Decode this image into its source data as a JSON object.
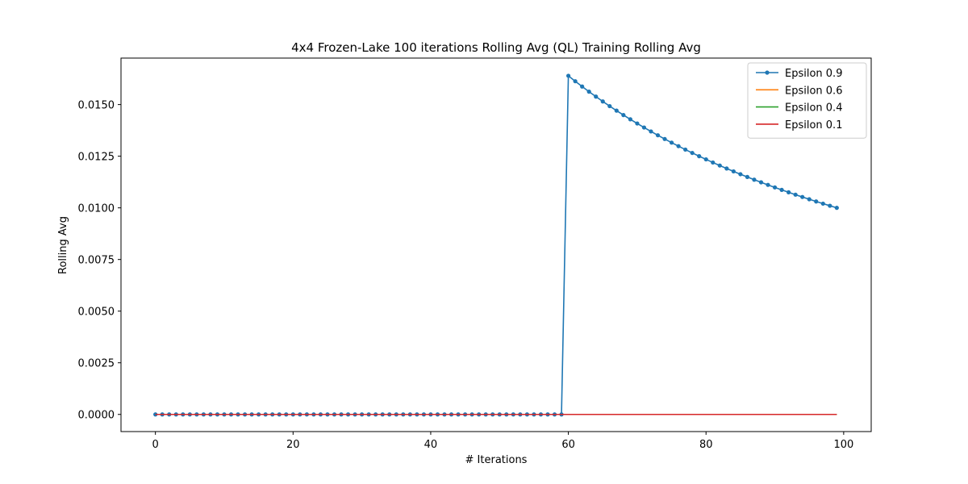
{
  "chart_data": {
    "type": "line",
    "title": "4x4 Frozen-Lake 100 iterations  Rolling Avg (QL) Training Rolling Avg",
    "xlabel": "# Iterations",
    "ylabel": "Rolling Avg",
    "xlim": [
      -5,
      104
    ],
    "ylim": [
      -0.00083,
      0.01725
    ],
    "xticks": [
      0,
      20,
      40,
      60,
      80,
      100
    ],
    "yticks": [
      0.0,
      0.0025,
      0.005,
      0.0075,
      0.01,
      0.0125,
      0.015
    ],
    "ytick_labels": [
      "0.0000",
      "0.0025",
      "0.0050",
      "0.0075",
      "0.0100",
      "0.0125",
      "0.0150"
    ],
    "grid": false,
    "legend_position": "top-right",
    "x": [
      0,
      1,
      2,
      3,
      4,
      5,
      6,
      7,
      8,
      9,
      10,
      11,
      12,
      13,
      14,
      15,
      16,
      17,
      18,
      19,
      20,
      21,
      22,
      23,
      24,
      25,
      26,
      27,
      28,
      29,
      30,
      31,
      32,
      33,
      34,
      35,
      36,
      37,
      38,
      39,
      40,
      41,
      42,
      43,
      44,
      45,
      46,
      47,
      48,
      49,
      50,
      51,
      52,
      53,
      54,
      55,
      56,
      57,
      58,
      59,
      60,
      61,
      62,
      63,
      64,
      65,
      66,
      67,
      68,
      69,
      70,
      71,
      72,
      73,
      74,
      75,
      76,
      77,
      78,
      79,
      80,
      81,
      82,
      83,
      84,
      85,
      86,
      87,
      88,
      89,
      90,
      91,
      92,
      93,
      94,
      95,
      96,
      97,
      98,
      99
    ],
    "series": [
      {
        "name": "Epsilon 0.9",
        "color": "#1f77b4",
        "marker": "circle",
        "values": [
          0,
          0,
          0,
          0,
          0,
          0,
          0,
          0,
          0,
          0,
          0,
          0,
          0,
          0,
          0,
          0,
          0,
          0,
          0,
          0,
          0,
          0,
          0,
          0,
          0,
          0,
          0,
          0,
          0,
          0,
          0,
          0,
          0,
          0,
          0,
          0,
          0,
          0,
          0,
          0,
          0,
          0,
          0,
          0,
          0,
          0,
          0,
          0,
          0,
          0,
          0,
          0,
          0,
          0,
          0,
          0,
          0,
          0,
          0,
          0,
          0.016393,
          0.016129,
          0.015873,
          0.015625,
          0.015385,
          0.015152,
          0.014925,
          0.014706,
          0.014493,
          0.014286,
          0.014085,
          0.013889,
          0.013699,
          0.013514,
          0.013333,
          0.013158,
          0.012987,
          0.012821,
          0.012658,
          0.0125,
          0.012346,
          0.012195,
          0.012048,
          0.011905,
          0.011765,
          0.011628,
          0.011494,
          0.011364,
          0.011236,
          0.011111,
          0.010989,
          0.01087,
          0.010753,
          0.010638,
          0.010526,
          0.010417,
          0.010309,
          0.010204,
          0.010101,
          0.01
        ]
      },
      {
        "name": "Epsilon 0.6",
        "color": "#ff7f0e",
        "marker": "none",
        "values": [
          0,
          0,
          0,
          0,
          0,
          0,
          0,
          0,
          0,
          0,
          0,
          0,
          0,
          0,
          0,
          0,
          0,
          0,
          0,
          0,
          0,
          0,
          0,
          0,
          0,
          0,
          0,
          0,
          0,
          0,
          0,
          0,
          0,
          0,
          0,
          0,
          0,
          0,
          0,
          0,
          0,
          0,
          0,
          0,
          0,
          0,
          0,
          0,
          0,
          0,
          0,
          0,
          0,
          0,
          0,
          0,
          0,
          0,
          0,
          0,
          0,
          0,
          0,
          0,
          0,
          0,
          0,
          0,
          0,
          0,
          0,
          0,
          0,
          0,
          0,
          0,
          0,
          0,
          0,
          0,
          0,
          0,
          0,
          0,
          0,
          0,
          0,
          0,
          0,
          0,
          0,
          0,
          0,
          0,
          0,
          0,
          0,
          0,
          0,
          0
        ]
      },
      {
        "name": "Epsilon 0.4",
        "color": "#2ca02c",
        "marker": "none",
        "values": [
          0,
          0,
          0,
          0,
          0,
          0,
          0,
          0,
          0,
          0,
          0,
          0,
          0,
          0,
          0,
          0,
          0,
          0,
          0,
          0,
          0,
          0,
          0,
          0,
          0,
          0,
          0,
          0,
          0,
          0,
          0,
          0,
          0,
          0,
          0,
          0,
          0,
          0,
          0,
          0,
          0,
          0,
          0,
          0,
          0,
          0,
          0,
          0,
          0,
          0,
          0,
          0,
          0,
          0,
          0,
          0,
          0,
          0,
          0,
          0,
          0,
          0,
          0,
          0,
          0,
          0,
          0,
          0,
          0,
          0,
          0,
          0,
          0,
          0,
          0,
          0,
          0,
          0,
          0,
          0,
          0,
          0,
          0,
          0,
          0,
          0,
          0,
          0,
          0,
          0,
          0,
          0,
          0,
          0,
          0,
          0,
          0,
          0,
          0,
          0
        ]
      },
      {
        "name": "Epsilon 0.1",
        "color": "#d62728",
        "marker": "none",
        "values": [
          0,
          0,
          0,
          0,
          0,
          0,
          0,
          0,
          0,
          0,
          0,
          0,
          0,
          0,
          0,
          0,
          0,
          0,
          0,
          0,
          0,
          0,
          0,
          0,
          0,
          0,
          0,
          0,
          0,
          0,
          0,
          0,
          0,
          0,
          0,
          0,
          0,
          0,
          0,
          0,
          0,
          0,
          0,
          0,
          0,
          0,
          0,
          0,
          0,
          0,
          0,
          0,
          0,
          0,
          0,
          0,
          0,
          0,
          0,
          0,
          0,
          0,
          0,
          0,
          0,
          0,
          0,
          0,
          0,
          0,
          0,
          0,
          0,
          0,
          0,
          0,
          0,
          0,
          0,
          0,
          0,
          0,
          0,
          0,
          0,
          0,
          0,
          0,
          0,
          0,
          0,
          0,
          0,
          0,
          0,
          0,
          0,
          0,
          0,
          0
        ]
      }
    ]
  }
}
